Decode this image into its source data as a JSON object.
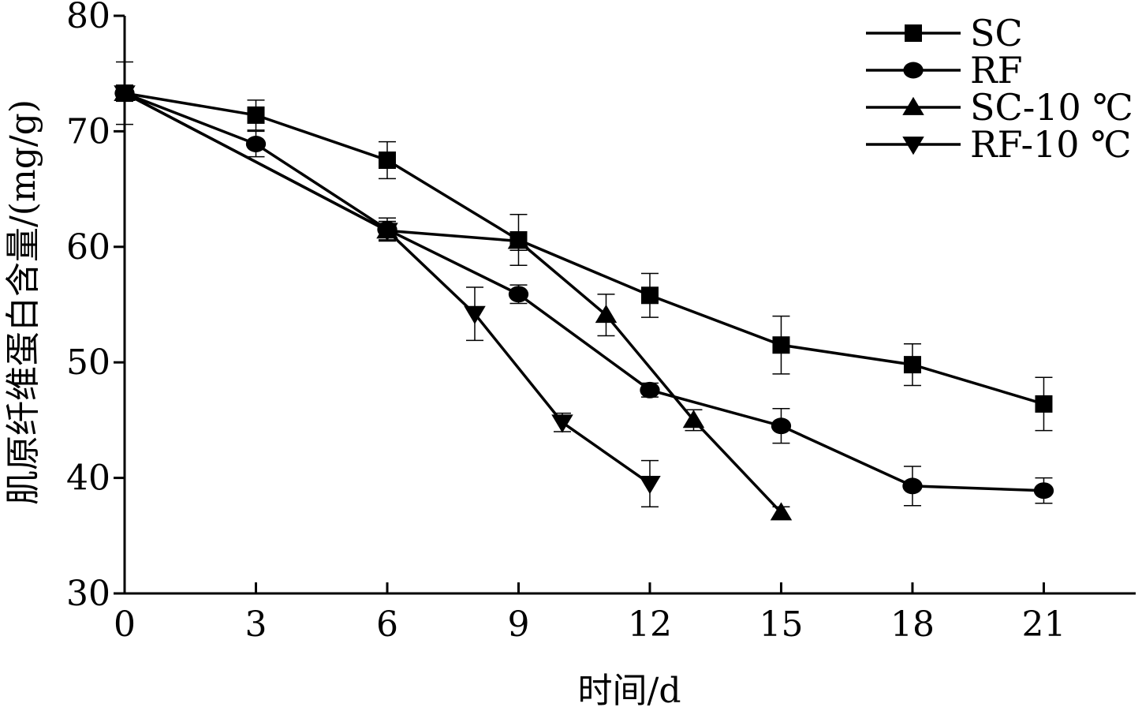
{
  "chart_data": {
    "type": "line",
    "xlabel": "时间/d",
    "ylabel": "肌原纤维蛋白含量/(mg/g)",
    "xlim": [
      0,
      23.1
    ],
    "ylim": [
      30,
      80
    ],
    "xticks": [
      "0",
      "3",
      "6",
      "9",
      "12",
      "15",
      "18",
      "21"
    ],
    "yticks": [
      "30",
      "40",
      "50",
      "60",
      "70",
      "80"
    ],
    "grid": false,
    "legend_position": "top-right",
    "series": [
      {
        "name": "SC",
        "marker": "square",
        "x": [
          0,
          3,
          6,
          9,
          12,
          15,
          18,
          21
        ],
        "y": [
          73.3,
          71.4,
          67.5,
          60.6,
          55.8,
          51.5,
          49.8,
          46.4
        ],
        "err": [
          2.7,
          1.3,
          1.6,
          2.2,
          1.9,
          2.5,
          1.8,
          2.3
        ]
      },
      {
        "name": "RF",
        "marker": "circle",
        "x": [
          0,
          3,
          6,
          9,
          12,
          15,
          18,
          21
        ],
        "y": [
          73.3,
          68.9,
          61.5,
          55.9,
          47.6,
          44.5,
          39.3,
          38.9
        ],
        "err": [
          0.6,
          1.1,
          1.0,
          0.8,
          0.6,
          1.5,
          1.7,
          1.1
        ]
      },
      {
        "name": "SC-10 ℃",
        "marker": "triangle-up",
        "x": [
          0,
          6,
          9,
          11,
          13,
          15
        ],
        "y": [
          73.3,
          61.4,
          60.5,
          54.1,
          45.0,
          37.0
        ],
        "err": [
          0.6,
          0.8,
          0.8,
          1.8,
          0.9,
          0.5
        ]
      },
      {
        "name": "RF-10 ℃",
        "marker": "triangle-down",
        "x": [
          0,
          6,
          8,
          10,
          12
        ],
        "y": [
          73.3,
          61.4,
          54.2,
          44.8,
          39.5
        ],
        "err": [
          0.6,
          0.8,
          2.3,
          0.8,
          2.0
        ]
      }
    ]
  }
}
